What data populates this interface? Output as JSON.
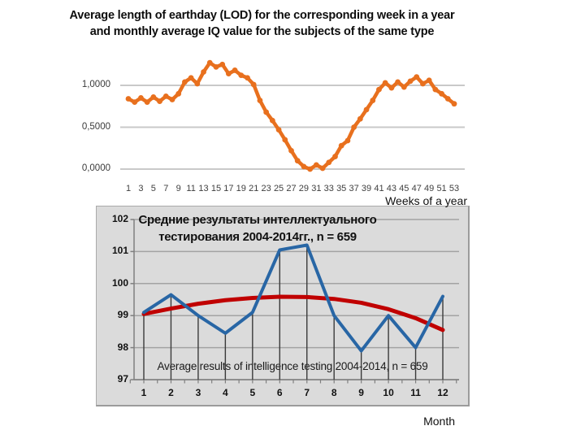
{
  "title": {
    "line1": "Average length of earthday (LOD) for the corresponding week in a year",
    "line2": "and monthly average IQ value for the subjects of the same type"
  },
  "chart_data": [
    {
      "type": "line",
      "name": "lod-weekly-chart",
      "xlabel": "Weeks of a year",
      "x": [
        1,
        2,
        3,
        4,
        5,
        6,
        7,
        8,
        9,
        10,
        11,
        12,
        13,
        14,
        15,
        16,
        17,
        18,
        19,
        20,
        21,
        22,
        23,
        24,
        25,
        26,
        27,
        28,
        29,
        30,
        31,
        32,
        33,
        34,
        35,
        36,
        37,
        38,
        39,
        40,
        41,
        42,
        43,
        44,
        45,
        46,
        47,
        48,
        49,
        50,
        51,
        52,
        53
      ],
      "xticks": [
        1,
        3,
        5,
        7,
        9,
        11,
        13,
        15,
        17,
        19,
        21,
        23,
        25,
        27,
        29,
        31,
        33,
        35,
        37,
        39,
        41,
        43,
        45,
        47,
        49,
        51,
        53
      ],
      "yticks": {
        "values": [
          0,
          0.5,
          1.0
        ],
        "labels": [
          "0,0000",
          "0,5000",
          "1,0000"
        ]
      },
      "ylim": [
        -0.1,
        1.35
      ],
      "grid": "horizontal",
      "series": [
        {
          "name": "LOD",
          "color": "#e8701e",
          "marker": "circle",
          "values": [
            0.84,
            0.8,
            0.85,
            0.8,
            0.86,
            0.81,
            0.87,
            0.83,
            0.9,
            1.04,
            1.09,
            1.02,
            1.16,
            1.27,
            1.22,
            1.25,
            1.14,
            1.18,
            1.12,
            1.09,
            1.01,
            0.82,
            0.68,
            0.58,
            0.47,
            0.35,
            0.22,
            0.1,
            0.03,
            0.0,
            0.05,
            0.01,
            0.08,
            0.15,
            0.28,
            0.34,
            0.5,
            0.6,
            0.71,
            0.82,
            0.95,
            1.03,
            0.97,
            1.04,
            0.98,
            1.05,
            1.1,
            1.02,
            1.06,
            0.95,
            0.9,
            0.84,
            0.78
          ]
        }
      ]
    },
    {
      "type": "line",
      "name": "iq-monthly-chart",
      "title_lines": [
        "Средние результаты интеллектуального",
        "тестирования 2004-2014гг., n = 659"
      ],
      "overlay_text": "Average results of intelligence testing 2004-2014, n = 659",
      "xlabel": "Month",
      "x": [
        1,
        2,
        3,
        4,
        5,
        6,
        7,
        8,
        9,
        10,
        11,
        12
      ],
      "xticks": [
        1,
        2,
        3,
        4,
        5,
        6,
        7,
        8,
        9,
        10,
        11,
        12
      ],
      "yticks": [
        97,
        98,
        99,
        100,
        101,
        102
      ],
      "ylim": [
        97,
        102
      ],
      "grid": "horizontal",
      "series": [
        {
          "name": "monthly-average-IQ",
          "color": "#2866a5",
          "drop_lines": true,
          "values": [
            99.1,
            99.65,
            99.0,
            98.45,
            99.1,
            101.05,
            101.2,
            99.0,
            97.9,
            99.0,
            98.0,
            99.6
          ]
        },
        {
          "name": "trend-curve",
          "color": "#c00000",
          "values": [
            99.05,
            99.22,
            99.37,
            99.48,
            99.55,
            99.59,
            99.58,
            99.52,
            99.4,
            99.2,
            98.92,
            98.55
          ]
        }
      ]
    }
  ]
}
